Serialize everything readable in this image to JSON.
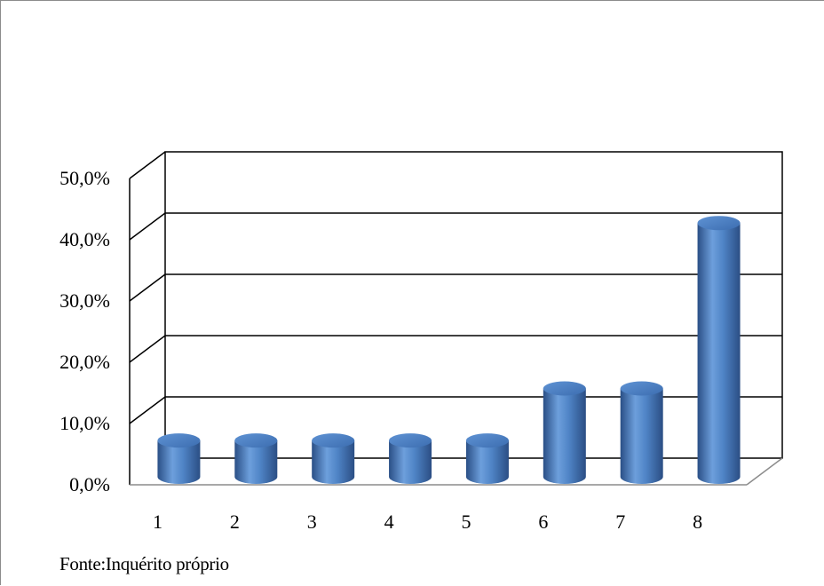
{
  "chart_data": {
    "type": "bar",
    "style": "3d-cylinder",
    "categories": [
      "1",
      "2",
      "3",
      "4",
      "5",
      "6",
      "7",
      "8"
    ],
    "values": [
      6.5,
      6.5,
      6.5,
      6.5,
      6.5,
      15.0,
      15.0,
      42.0
    ],
    "value_unit": "%",
    "ylim": [
      0,
      50
    ],
    "yticks": [
      "0,0%",
      "10,0%",
      "20,0%",
      "30,0%",
      "40,0%",
      "50,0%"
    ],
    "title": "",
    "xlabel": "",
    "ylabel": "",
    "grid": true,
    "legend": "none",
    "bar_color": "#4a7fc1"
  },
  "source_note": "Fonte:Inquérito próprio"
}
